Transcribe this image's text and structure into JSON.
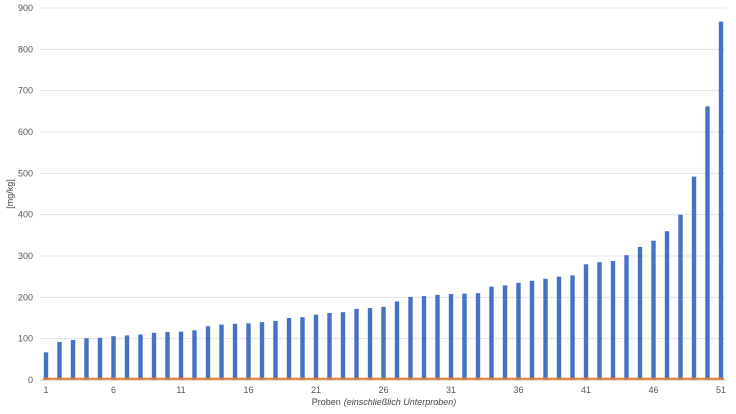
{
  "chart_data": {
    "type": "bar",
    "title": "",
    "xlabel": "Proben",
    "xlabel_italic": "(einschließlich Unterproben)",
    "ylabel": "[mg/kg]",
    "ylim": [
      0,
      900
    ],
    "yticks": [
      0,
      100,
      200,
      300,
      400,
      500,
      600,
      700,
      800,
      900
    ],
    "xticks": [
      1,
      6,
      11,
      16,
      21,
      26,
      31,
      36,
      41,
      46,
      51
    ],
    "grid": true,
    "legend": "none",
    "categories": [
      1,
      2,
      3,
      4,
      5,
      6,
      7,
      8,
      9,
      10,
      11,
      12,
      13,
      14,
      15,
      16,
      17,
      18,
      19,
      20,
      21,
      22,
      23,
      24,
      25,
      26,
      27,
      28,
      29,
      30,
      31,
      32,
      33,
      34,
      35,
      36,
      37,
      38,
      39,
      40,
      41,
      42,
      43,
      44,
      45,
      46,
      47,
      48,
      49,
      50,
      51
    ],
    "series": [
      {
        "color": "#4472c4",
        "values": [
          67,
          92,
          97,
          101,
          102,
          106,
          108,
          110,
          114,
          116,
          117,
          120,
          130,
          134,
          136,
          137,
          140,
          143,
          150,
          152,
          158,
          162,
          164,
          172,
          174,
          177,
          190,
          201,
          203,
          206,
          208,
          209,
          210,
          226,
          229,
          235,
          240,
          245,
          250,
          253,
          280,
          285,
          288,
          302,
          322,
          337,
          360,
          400,
          492,
          662,
          867
        ]
      }
    ],
    "reference_line": {
      "value": 3,
      "color": "#ed7d31"
    }
  }
}
